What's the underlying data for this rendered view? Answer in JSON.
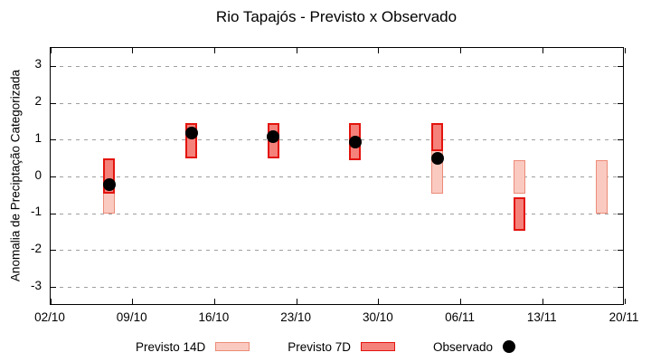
{
  "chart_data": {
    "type": "bar",
    "title": "Rio Tapajós - Previsto x Observado",
    "ylabel": "Anomalia de Preciptação Categorizada",
    "xlabel": "",
    "ylim": [
      -3.5,
      3.5
    ],
    "xlim_days": [
      0,
      49
    ],
    "y_ticks": [
      3,
      2,
      1,
      0,
      -1,
      -2,
      -3
    ],
    "x_ticks": [
      {
        "day": 0,
        "label": "02/10"
      },
      {
        "day": 7,
        "label": "09/10"
      },
      {
        "day": 14,
        "label": "16/10"
      },
      {
        "day": 21,
        "label": "23/10"
      },
      {
        "day": 28,
        "label": "30/10"
      },
      {
        "day": 35,
        "label": "06/11"
      },
      {
        "day": 42,
        "label": "13/11"
      },
      {
        "day": 49,
        "label": "20/11"
      }
    ],
    "grid": {
      "horizontal_dashed": true,
      "vertical": false,
      "color": "#9e9e9e"
    },
    "bar_width_days": 1,
    "colors": {
      "previsto_14d_fill": "#facac1",
      "previsto_14d_border": "#ec8b77",
      "previsto_7d_fill": "#f5817b",
      "previsto_7d_border": "#e3140e",
      "observado": "#000000",
      "axis": "#000000"
    },
    "series": [
      {
        "id": "previsto-14d",
        "name": "Previsto 14D",
        "type": "range-bar",
        "fill": "#facac1",
        "border": "#ec8b77",
        "border_px": 1.5,
        "points": [
          {
            "date": "07/10",
            "day": 5,
            "low": -1.0,
            "high": 0.5
          },
          {
            "date": "04/11",
            "day": 33,
            "low": -0.45,
            "high": 1.45
          },
          {
            "date": "11/11",
            "day": 40,
            "low": -0.45,
            "high": 0.45
          },
          {
            "date": "18/11",
            "day": 47,
            "low": -1.0,
            "high": 0.45
          }
        ]
      },
      {
        "id": "previsto-7d",
        "name": "Previsto 7D",
        "type": "range-bar",
        "fill": "#f5817b",
        "border": "#e3140e",
        "border_px": 2,
        "points": [
          {
            "date": "07/10",
            "day": 5,
            "low": -0.45,
            "high": 0.5
          },
          {
            "date": "14/10",
            "day": 12,
            "low": 0.5,
            "high": 1.45
          },
          {
            "date": "21/10",
            "day": 19,
            "low": 0.5,
            "high": 1.45
          },
          {
            "date": "28/10",
            "day": 26,
            "low": 0.45,
            "high": 1.45
          },
          {
            "date": "04/11",
            "day": 33,
            "low": 0.7,
            "high": 1.45
          },
          {
            "date": "11/11",
            "day": 40,
            "low": -1.45,
            "high": -0.55
          }
        ]
      },
      {
        "id": "observado",
        "name": "Observado",
        "type": "scatter",
        "color": "#000000",
        "points": [
          {
            "date": "07/10",
            "day": 5,
            "value": -0.2
          },
          {
            "date": "14/10",
            "day": 12,
            "value": 1.2
          },
          {
            "date": "21/10",
            "day": 19,
            "value": 1.1
          },
          {
            "date": "28/10",
            "day": 26,
            "value": 0.95
          },
          {
            "date": "04/11",
            "day": 33,
            "value": 0.5
          }
        ]
      }
    ],
    "legend": {
      "position": "bottom",
      "items": [
        {
          "label": "Previsto 14D",
          "swatch": "range-14d"
        },
        {
          "label": "Previsto 7D",
          "swatch": "range-7d"
        },
        {
          "label": "Observado",
          "swatch": "dot"
        }
      ]
    }
  }
}
